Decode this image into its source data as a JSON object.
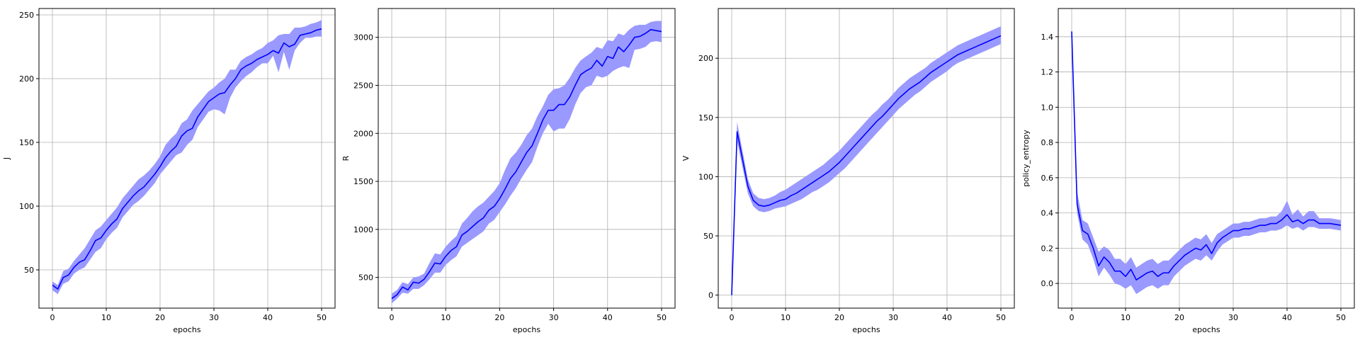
{
  "chart_data": [
    {
      "type": "line",
      "xlabel": "epochs",
      "ylabel": "J",
      "xlim": [
        -2.5,
        52.5
      ],
      "ylim": [
        20,
        255
      ],
      "xticks": [
        0,
        10,
        20,
        30,
        40,
        50
      ],
      "yticks": [
        50,
        100,
        150,
        200,
        250
      ],
      "grid": true,
      "line_color": "#0000ff",
      "band_color": "#9999ff",
      "x": [
        0,
        1,
        2,
        3,
        4,
        5,
        6,
        7,
        8,
        9,
        10,
        11,
        12,
        13,
        14,
        15,
        16,
        17,
        18,
        19,
        20,
        21,
        22,
        23,
        24,
        25,
        26,
        27,
        28,
        29,
        30,
        31,
        32,
        33,
        34,
        35,
        36,
        37,
        38,
        39,
        40,
        41,
        42,
        43,
        44,
        45,
        46,
        47,
        48,
        49,
        50
      ],
      "mean": [
        38,
        35,
        44,
        46,
        52,
        56,
        58,
        65,
        73,
        75,
        81,
        86,
        90,
        98,
        103,
        108,
        112,
        115,
        120,
        125,
        131,
        138,
        143,
        147,
        155,
        159,
        161,
        170,
        176,
        182,
        185,
        188,
        189,
        195,
        200,
        207,
        210,
        212,
        215,
        217,
        219,
        222,
        220,
        228,
        225,
        227,
        234,
        235,
        236,
        238,
        239
      ],
      "lower": [
        34,
        31,
        39,
        41,
        47,
        50,
        52,
        58,
        64,
        67,
        74,
        79,
        83,
        91,
        96,
        101,
        104,
        108,
        113,
        118,
        125,
        130,
        135,
        140,
        142,
        148,
        152,
        162,
        168,
        174,
        176,
        175,
        172,
        185,
        193,
        198,
        202,
        205,
        209,
        212,
        212,
        218,
        205,
        221,
        207,
        222,
        228,
        232,
        232,
        233,
        233
      ],
      "upper": [
        41,
        38,
        49,
        51,
        57,
        62,
        67,
        74,
        81,
        84,
        89,
        94,
        99,
        106,
        111,
        116,
        121,
        124,
        128,
        133,
        139,
        148,
        153,
        157,
        165,
        168,
        175,
        180,
        185,
        190,
        193,
        197,
        200,
        207,
        207,
        214,
        217,
        219,
        222,
        224,
        228,
        230,
        234,
        235,
        235,
        240,
        240,
        241,
        243,
        244,
        246
      ]
    },
    {
      "type": "line",
      "xlabel": "epochs",
      "ylabel": "R",
      "xlim": [
        -2.5,
        52.5
      ],
      "ylim": [
        180,
        3300
      ],
      "xticks": [
        0,
        10,
        20,
        30,
        40,
        50
      ],
      "yticks": [
        500,
        1000,
        1500,
        2000,
        2500,
        3000
      ],
      "grid": true,
      "line_color": "#0000ff",
      "band_color": "#9999ff",
      "x": [
        0,
        1,
        2,
        3,
        4,
        5,
        6,
        7,
        8,
        9,
        10,
        11,
        12,
        13,
        14,
        15,
        16,
        17,
        18,
        19,
        20,
        21,
        22,
        23,
        24,
        25,
        26,
        27,
        28,
        29,
        30,
        31,
        32,
        33,
        34,
        35,
        36,
        37,
        38,
        39,
        40,
        41,
        42,
        43,
        44,
        45,
        46,
        47,
        48,
        49,
        50
      ],
      "mean": [
        280,
        320,
        400,
        370,
        450,
        440,
        480,
        560,
        650,
        640,
        720,
        780,
        820,
        940,
        980,
        1030,
        1080,
        1120,
        1200,
        1240,
        1320,
        1420,
        1530,
        1600,
        1700,
        1800,
        1870,
        2000,
        2140,
        2240,
        2240,
        2300,
        2300,
        2380,
        2500,
        2610,
        2650,
        2680,
        2760,
        2700,
        2800,
        2780,
        2900,
        2850,
        2920,
        3000,
        3010,
        3040,
        3080,
        3070,
        3060
      ],
      "lower": [
        230,
        280,
        340,
        330,
        380,
        380,
        420,
        480,
        550,
        550,
        630,
        680,
        720,
        820,
        860,
        900,
        940,
        980,
        1060,
        1100,
        1180,
        1260,
        1350,
        1430,
        1530,
        1620,
        1700,
        1860,
        2000,
        2100,
        2020,
        2050,
        2050,
        2150,
        2300,
        2420,
        2480,
        2500,
        2600,
        2580,
        2600,
        2650,
        2680,
        2700,
        2680,
        2870,
        2880,
        2900,
        2950,
        2960,
        2950
      ],
      "upper": [
        330,
        370,
        450,
        430,
        500,
        510,
        540,
        650,
        750,
        740,
        820,
        880,
        930,
        1060,
        1120,
        1190,
        1240,
        1280,
        1340,
        1400,
        1480,
        1620,
        1740,
        1800,
        1880,
        1980,
        2050,
        2180,
        2280,
        2400,
        2460,
        2470,
        2500,
        2580,
        2680,
        2760,
        2800,
        2840,
        2900,
        2880,
        2970,
        2960,
        3040,
        3020,
        3080,
        3120,
        3130,
        3130,
        3160,
        3170,
        3170
      ]
    },
    {
      "type": "line",
      "xlabel": "epochs",
      "ylabel": "V",
      "xlim": [
        -2.5,
        52.5
      ],
      "ylim": [
        -11,
        242
      ],
      "xticks": [
        0,
        10,
        20,
        30,
        40,
        50
      ],
      "yticks": [
        0,
        50,
        100,
        150,
        200
      ],
      "grid": true,
      "line_color": "#0000ff",
      "band_color": "#9999ff",
      "x": [
        0,
        1,
        2,
        3,
        4,
        5,
        6,
        7,
        8,
        9,
        10,
        11,
        12,
        13,
        14,
        15,
        16,
        17,
        18,
        19,
        20,
        21,
        22,
        23,
        24,
        25,
        26,
        27,
        28,
        29,
        30,
        31,
        32,
        33,
        34,
        35,
        36,
        37,
        38,
        39,
        40,
        41,
        42,
        43,
        44,
        45,
        46,
        47,
        48,
        49,
        50
      ],
      "mean": [
        0,
        138,
        115,
        92,
        80,
        76,
        75,
        76,
        78,
        80,
        81,
        84,
        86,
        89,
        92,
        95,
        98,
        101,
        104,
        108,
        112,
        117,
        122,
        127,
        132,
        137,
        142,
        147,
        151,
        156,
        161,
        166,
        170,
        174,
        177,
        180,
        184,
        188,
        191,
        194,
        197,
        200,
        203,
        205,
        207,
        209,
        211,
        213,
        215,
        217,
        219
      ],
      "lower": [
        0,
        130,
        108,
        86,
        75,
        71,
        70,
        71,
        73,
        74,
        75,
        77,
        79,
        81,
        84,
        87,
        89,
        92,
        95,
        99,
        103,
        107,
        112,
        117,
        122,
        127,
        132,
        137,
        142,
        147,
        152,
        157,
        161,
        165,
        169,
        172,
        176,
        180,
        183,
        186,
        189,
        193,
        196,
        198,
        200,
        202,
        204,
        206,
        208,
        210,
        212
      ],
      "upper": [
        0,
        146,
        122,
        98,
        86,
        82,
        81,
        82,
        84,
        87,
        89,
        92,
        95,
        98,
        101,
        104,
        107,
        110,
        114,
        118,
        122,
        127,
        132,
        137,
        142,
        147,
        152,
        156,
        161,
        165,
        170,
        175,
        179,
        183,
        186,
        189,
        192,
        196,
        199,
        202,
        205,
        208,
        211,
        213,
        215,
        217,
        219,
        221,
        223,
        225,
        227
      ]
    },
    {
      "type": "line",
      "xlabel": "epochs",
      "ylabel": "policy_entropy",
      "xlim": [
        -2.5,
        52.5
      ],
      "ylim": [
        -0.14,
        1.56
      ],
      "xticks": [
        0,
        10,
        20,
        30,
        40,
        50
      ],
      "yticks": [
        0.0,
        0.2,
        0.4,
        0.6,
        0.8,
        1.0,
        1.2,
        1.4
      ],
      "grid": true,
      "line_color": "#0000ff",
      "band_color": "#9999ff",
      "x": [
        0,
        1,
        2,
        3,
        4,
        5,
        6,
        7,
        8,
        9,
        10,
        11,
        12,
        13,
        14,
        15,
        16,
        17,
        18,
        19,
        20,
        21,
        22,
        23,
        24,
        25,
        26,
        27,
        28,
        29,
        30,
        31,
        32,
        33,
        34,
        35,
        36,
        37,
        38,
        39,
        40,
        41,
        42,
        43,
        44,
        45,
        46,
        47,
        48,
        49,
        50
      ],
      "mean": [
        1.43,
        0.45,
        0.3,
        0.28,
        0.2,
        0.1,
        0.15,
        0.12,
        0.07,
        0.07,
        0.04,
        0.08,
        0.02,
        0.04,
        0.06,
        0.07,
        0.04,
        0.06,
        0.06,
        0.1,
        0.13,
        0.16,
        0.18,
        0.2,
        0.19,
        0.22,
        0.17,
        0.23,
        0.26,
        0.28,
        0.3,
        0.3,
        0.31,
        0.31,
        0.32,
        0.33,
        0.33,
        0.34,
        0.34,
        0.36,
        0.39,
        0.35,
        0.36,
        0.34,
        0.36,
        0.36,
        0.34,
        0.34,
        0.34,
        0.335,
        0.33
      ],
      "lower": [
        1.43,
        0.4,
        0.25,
        0.22,
        0.14,
        0.04,
        0.09,
        0.05,
        0.0,
        -0.01,
        -0.03,
        -0.01,
        -0.06,
        -0.04,
        -0.02,
        -0.01,
        -0.03,
        -0.01,
        -0.01,
        0.04,
        0.07,
        0.1,
        0.12,
        0.14,
        0.13,
        0.16,
        0.13,
        0.18,
        0.22,
        0.24,
        0.26,
        0.26,
        0.27,
        0.27,
        0.28,
        0.29,
        0.29,
        0.3,
        0.3,
        0.31,
        0.33,
        0.31,
        0.32,
        0.3,
        0.32,
        0.32,
        0.31,
        0.31,
        0.31,
        0.305,
        0.3
      ],
      "upper": [
        1.43,
        0.52,
        0.36,
        0.34,
        0.26,
        0.18,
        0.21,
        0.19,
        0.14,
        0.14,
        0.11,
        0.15,
        0.09,
        0.11,
        0.13,
        0.14,
        0.11,
        0.13,
        0.13,
        0.16,
        0.19,
        0.22,
        0.24,
        0.26,
        0.25,
        0.28,
        0.23,
        0.28,
        0.3,
        0.32,
        0.34,
        0.34,
        0.35,
        0.35,
        0.36,
        0.37,
        0.37,
        0.38,
        0.38,
        0.41,
        0.47,
        0.39,
        0.42,
        0.38,
        0.41,
        0.41,
        0.37,
        0.37,
        0.37,
        0.365,
        0.36
      ]
    }
  ]
}
